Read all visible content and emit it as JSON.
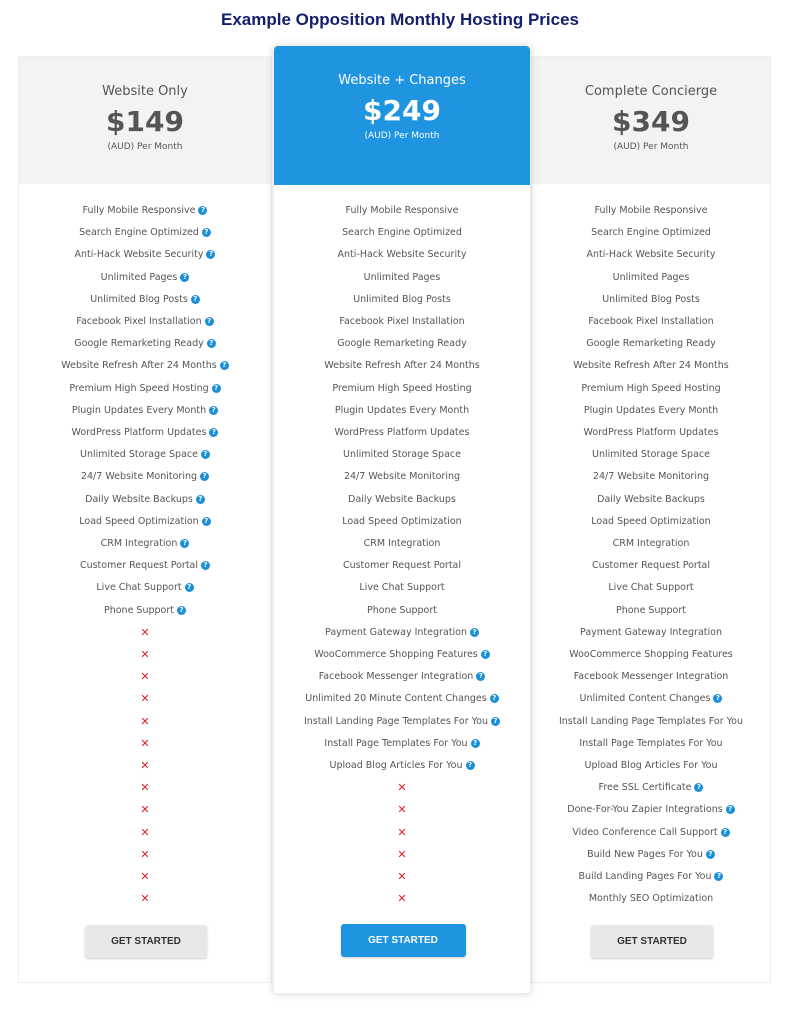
{
  "title": "Example Opposition Monthly Hosting Prices",
  "plans": [
    {
      "name": "Website Only",
      "price": "$149",
      "period": "(AUD) Per Month",
      "highlight": false,
      "button": "GET STARTED",
      "features": [
        {
          "text": "Fully Mobile Responsive",
          "help": true
        },
        {
          "text": "Search Engine Optimized",
          "help": true
        },
        {
          "text": "Anti-Hack Website Security",
          "help": true
        },
        {
          "text": "Unlimited Pages",
          "help": true
        },
        {
          "text": "Unlimited Blog Posts",
          "help": true
        },
        {
          "text": "Facebook Pixel Installation",
          "help": true
        },
        {
          "text": "Google Remarketing Ready",
          "help": true
        },
        {
          "text": "Website Refresh After 24 Months",
          "help": true
        },
        {
          "text": "Premium High Speed Hosting",
          "help": true
        },
        {
          "text": "Plugin Updates Every Month",
          "help": true
        },
        {
          "text": "WordPress Platform Updates",
          "help": true
        },
        {
          "text": "Unlimited Storage Space",
          "help": true
        },
        {
          "text": "24/7 Website Monitoring",
          "help": true
        },
        {
          "text": "Daily Website Backups",
          "help": true
        },
        {
          "text": "Load Speed Optimization",
          "help": true
        },
        {
          "text": "CRM Integration",
          "help": true
        },
        {
          "text": "Customer Request Portal",
          "help": true
        },
        {
          "text": "Live Chat Support",
          "help": true
        },
        {
          "text": "Phone Support",
          "help": true
        },
        null,
        null,
        null,
        null,
        null,
        null,
        null,
        null,
        null,
        null,
        null,
        null,
        null
      ]
    },
    {
      "name": "Website + Changes",
      "price": "$249",
      "period": "(AUD) Per Month",
      "highlight": true,
      "button": "GET STARTED",
      "features": [
        {
          "text": "Fully Mobile Responsive",
          "help": false
        },
        {
          "text": "Search Engine Optimized",
          "help": false
        },
        {
          "text": "Anti-Hack Website Security",
          "help": false
        },
        {
          "text": "Unlimited Pages",
          "help": false
        },
        {
          "text": "Unlimited Blog Posts",
          "help": false
        },
        {
          "text": "Facebook Pixel Installation",
          "help": false
        },
        {
          "text": "Google Remarketing Ready",
          "help": false
        },
        {
          "text": "Website Refresh After 24 Months",
          "help": false
        },
        {
          "text": "Premium High Speed Hosting",
          "help": false
        },
        {
          "text": "Plugin Updates Every Month",
          "help": false
        },
        {
          "text": "WordPress Platform Updates",
          "help": false
        },
        {
          "text": "Unlimited Storage Space",
          "help": false
        },
        {
          "text": "24/7 Website Monitoring",
          "help": false
        },
        {
          "text": "Daily Website Backups",
          "help": false
        },
        {
          "text": "Load Speed Optimization",
          "help": false
        },
        {
          "text": "CRM Integration",
          "help": false
        },
        {
          "text": "Customer Request Portal",
          "help": false
        },
        {
          "text": "Live Chat Support",
          "help": false
        },
        {
          "text": "Phone Support",
          "help": false
        },
        {
          "text": "Payment Gateway Integration",
          "help": true
        },
        {
          "text": "WooCommerce Shopping Features",
          "help": true
        },
        {
          "text": "Facebook Messenger Integration",
          "help": true
        },
        {
          "text": "Unlimited 20 Minute Content Changes",
          "help": true
        },
        {
          "text": "Install Landing Page Templates For You",
          "help": true
        },
        {
          "text": "Install Page Templates For You",
          "help": true
        },
        {
          "text": "Upload Blog Articles For You",
          "help": true
        },
        null,
        null,
        null,
        null,
        null,
        null
      ]
    },
    {
      "name": "Complete Concierge",
      "price": "$349",
      "period": "(AUD) Per Month",
      "highlight": false,
      "button": "GET STARTED",
      "features": [
        {
          "text": "Fully Mobile Responsive",
          "help": false
        },
        {
          "text": "Search Engine Optimized",
          "help": false
        },
        {
          "text": "Anti-Hack Website Security",
          "help": false
        },
        {
          "text": "Unlimited Pages",
          "help": false
        },
        {
          "text": "Unlimited Blog Posts",
          "help": false
        },
        {
          "text": "Facebook Pixel Installation",
          "help": false
        },
        {
          "text": "Google Remarketing Ready",
          "help": false
        },
        {
          "text": "Website Refresh After 24 Months",
          "help": false
        },
        {
          "text": "Premium High Speed Hosting",
          "help": false
        },
        {
          "text": "Plugin Updates Every Month",
          "help": false
        },
        {
          "text": "WordPress Platform Updates",
          "help": false
        },
        {
          "text": "Unlimited Storage Space",
          "help": false
        },
        {
          "text": "24/7 Website Monitoring",
          "help": false
        },
        {
          "text": "Daily Website Backups",
          "help": false
        },
        {
          "text": "Load Speed Optimization",
          "help": false
        },
        {
          "text": "CRM Integration",
          "help": false
        },
        {
          "text": "Customer Request Portal",
          "help": false
        },
        {
          "text": "Live Chat Support",
          "help": false
        },
        {
          "text": "Phone Support",
          "help": false
        },
        {
          "text": "Payment Gateway Integration",
          "help": false
        },
        {
          "text": "WooCommerce Shopping Features",
          "help": false
        },
        {
          "text": "Facebook Messenger Integration",
          "help": false
        },
        {
          "text": "Unlimited Content Changes",
          "help": true
        },
        {
          "text": "Install Landing Page Templates For You",
          "help": false
        },
        {
          "text": "Install Page Templates For You",
          "help": false
        },
        {
          "text": "Upload Blog Articles For You",
          "help": false
        },
        {
          "text": "Free SSL Certificate",
          "help": true
        },
        {
          "text": "Done-For-You Zapier Integrations",
          "help": true
        },
        {
          "text": "Video Conference Call Support",
          "help": true
        },
        {
          "text": "Build New Pages For You",
          "help": true
        },
        {
          "text": "Build Landing Pages For You",
          "help": true
        },
        {
          "text": "Monthly SEO Optimization",
          "help": false
        }
      ]
    }
  ]
}
